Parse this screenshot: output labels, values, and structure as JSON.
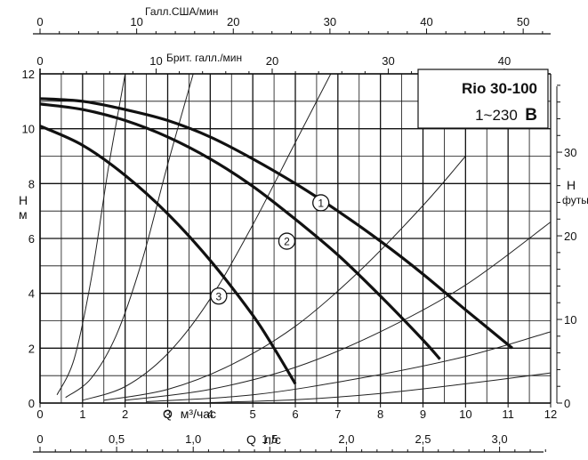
{
  "chart_data": {
    "type": "line",
    "title": "Rio 30-100",
    "subtitle_text": "1~230",
    "subtitle_bold": "B",
    "x_axis": {
      "label_prefix": "Q",
      "label": "м³/час",
      "range": [
        0,
        12
      ],
      "ticks": [
        "0",
        "1",
        "2",
        "3",
        "4",
        "5",
        "6",
        "7",
        "8",
        "9",
        "10",
        "11",
        "12"
      ]
    },
    "x2_axis_ls": {
      "label_prefix": "Q",
      "label": "л/с",
      "ticks": [
        {
          "v": 0,
          "t": "0"
        },
        {
          "v": 0.5,
          "t": "0,5"
        },
        {
          "v": 1.0,
          "t": "1,0"
        },
        {
          "v": 1.5,
          "t": "1,5"
        },
        {
          "v": 2.0,
          "t": "2,0"
        },
        {
          "v": 2.5,
          "t": "2,5"
        },
        {
          "v": 3.0,
          "t": "3,0"
        }
      ]
    },
    "x3_axis_us": {
      "label": "Галл.США/мин",
      "ticks": [
        {
          "v": 0,
          "t": "0"
        },
        {
          "v": 10,
          "t": "10"
        },
        {
          "v": 20,
          "t": "20"
        },
        {
          "v": 30,
          "t": "30"
        },
        {
          "v": 40,
          "t": "40"
        },
        {
          "v": 50,
          "t": "50"
        }
      ]
    },
    "x4_axis_uk": {
      "label": "Брит. галл./мин",
      "ticks": [
        {
          "v": 0,
          "t": "0"
        },
        {
          "v": 10,
          "t": "10"
        },
        {
          "v": 20,
          "t": "20"
        },
        {
          "v": 30,
          "t": "30"
        },
        {
          "v": 40,
          "t": "40"
        }
      ]
    },
    "y_axis": {
      "label_line1": "H",
      "label_line2": "м",
      "range": [
        0,
        12
      ],
      "ticks": [
        "0",
        "2",
        "4",
        "6",
        "8",
        "10",
        "12"
      ]
    },
    "y2_axis": {
      "label_line1": "H",
      "label_line2": "футы",
      "ticks": [
        {
          "v": 0,
          "t": "0"
        },
        {
          "v": 10,
          "t": "10"
        },
        {
          "v": 20,
          "t": "20"
        },
        {
          "v": 30,
          "t": "30"
        }
      ]
    },
    "grid": true,
    "series": [
      {
        "name": "1",
        "x": [
          0,
          1,
          2,
          3,
          4,
          5,
          6,
          7,
          8,
          9,
          10,
          11.1
        ],
        "y": [
          11.1,
          11.0,
          10.7,
          10.3,
          9.7,
          8.9,
          8.0,
          7.0,
          5.9,
          4.7,
          3.4,
          2.0
        ],
        "marker_at": [
          6.6,
          7.3
        ]
      },
      {
        "name": "2",
        "x": [
          0,
          1,
          2,
          3,
          4,
          5,
          6,
          7,
          8,
          9,
          9.4
        ],
        "y": [
          10.9,
          10.7,
          10.3,
          9.7,
          8.9,
          7.9,
          6.7,
          5.4,
          3.9,
          2.3,
          1.6
        ],
        "marker_at": [
          5.8,
          5.9
        ]
      },
      {
        "name": "3",
        "x": [
          0,
          1,
          2,
          3,
          4,
          5,
          5.5,
          6
        ],
        "y": [
          10.1,
          9.4,
          8.3,
          6.9,
          5.2,
          3.2,
          2.0,
          0.7
        ],
        "marker_at": [
          4.2,
          3.9
        ]
      }
    ],
    "system_curves": [
      {
        "x": [
          0.4,
          0.8,
          1.2,
          1.6,
          2.0
        ],
        "y": [
          0.3,
          1.6,
          4.5,
          8.5,
          12
        ]
      },
      {
        "x": [
          0.6,
          1.2,
          1.8,
          2.4,
          3.0,
          3.6
        ],
        "y": [
          0.2,
          0.9,
          2.5,
          5.2,
          8.7,
          12
        ]
      },
      {
        "x": [
          1.0,
          2.0,
          3.0,
          4.0,
          5.0,
          6.0,
          7.0
        ],
        "y": [
          0.1,
          0.6,
          1.8,
          3.8,
          6.5,
          9.5,
          12.5
        ]
      },
      {
        "x": [
          1.5,
          3.0,
          4.5,
          6.0,
          7.5,
          9.0,
          10.0
        ],
        "y": [
          0.1,
          0.5,
          1.4,
          2.8,
          4.8,
          7.2,
          9.0
        ]
      },
      {
        "x": [
          2.0,
          4.0,
          6.0,
          8.0,
          10.0,
          12.0
        ],
        "y": [
          0.1,
          0.5,
          1.3,
          2.6,
          4.3,
          6.6
        ]
      },
      {
        "x": [
          2.5,
          5.0,
          7.5,
          10.0,
          12.0
        ],
        "y": [
          0.05,
          0.3,
          0.9,
          1.7,
          2.6
        ]
      },
      {
        "x": [
          4.0,
          6.0,
          8.0,
          10.0,
          12.0
        ],
        "y": [
          0.02,
          0.12,
          0.35,
          0.7,
          1.1
        ]
      }
    ]
  }
}
